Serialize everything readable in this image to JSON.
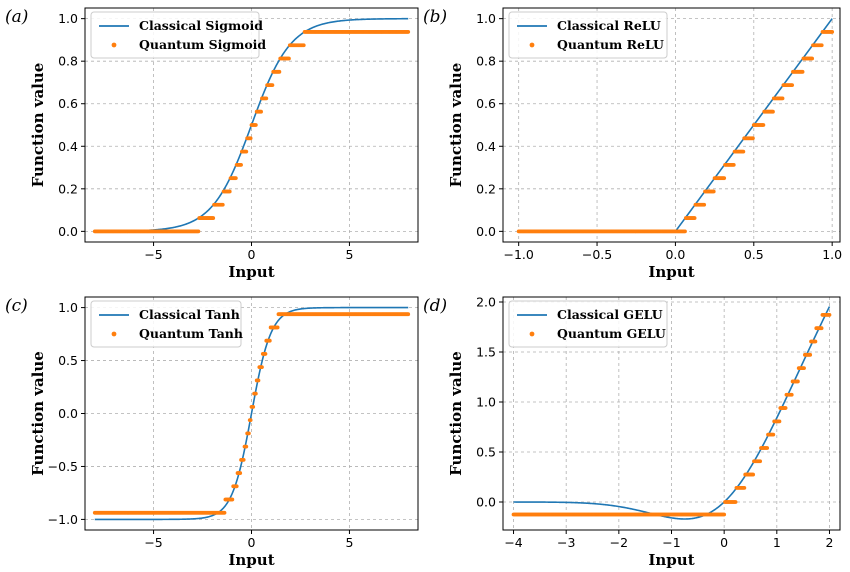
{
  "colors": {
    "classical": "#1f77b4",
    "quantum": "#ff7f0e",
    "grid": "#b0b0b0"
  },
  "chart_data": [
    {
      "type": "line",
      "panel_label": "(a)",
      "xlabel": "Input",
      "ylabel": "Function value",
      "xlim": [
        -8.5,
        8.5
      ],
      "ylim": [
        -0.05,
        1.05
      ],
      "xticks": [
        -5,
        0,
        5
      ],
      "xtick_labels": [
        "−5",
        "0",
        "5"
      ],
      "yticks": [
        0.0,
        0.2,
        0.4,
        0.6,
        0.8,
        1.0
      ],
      "ytick_labels": [
        "0.0",
        "0.2",
        "0.4",
        "0.6",
        "0.8",
        "1.0"
      ],
      "grid": true,
      "legend_position": "upper-left",
      "series": [
        {
          "name": "Classical Sigmoid",
          "style": "line",
          "function": "sigmoid",
          "x_range": [
            -8,
            8
          ]
        },
        {
          "name": "Quantum Sigmoid",
          "style": "dots",
          "function": "quantized_sigmoid",
          "x_range": [
            -8,
            8
          ],
          "levels": 16,
          "level_values": [
            0,
            0.0625,
            0.125,
            0.1875,
            0.25,
            0.3125,
            0.375,
            0.4375,
            0.5,
            0.5625,
            0.625,
            0.6875,
            0.75,
            0.8125,
            0.875,
            0.9375
          ]
        }
      ]
    },
    {
      "type": "line",
      "panel_label": "(b)",
      "xlabel": "Input",
      "ylabel": "Function value",
      "xlim": [
        -1.1,
        1.05
      ],
      "ylim": [
        -0.05,
        1.05
      ],
      "xticks": [
        -1.0,
        -0.5,
        0.0,
        0.5,
        1.0
      ],
      "xtick_labels": [
        "−1.0",
        "−0.5",
        "0.0",
        "0.5",
        "1.0"
      ],
      "yticks": [
        0.0,
        0.2,
        0.4,
        0.6,
        0.8,
        1.0
      ],
      "ytick_labels": [
        "0.0",
        "0.2",
        "0.4",
        "0.6",
        "0.8",
        "1.0"
      ],
      "grid": true,
      "legend_position": "upper-left",
      "series": [
        {
          "name": "Classical ReLU",
          "style": "line",
          "function": "relu",
          "x_range": [
            -1,
            1
          ]
        },
        {
          "name": "Quantum ReLU",
          "style": "dots",
          "function": "quantized_relu",
          "x_range": [
            -1,
            1
          ],
          "levels": 16,
          "level_values": [
            0,
            0.0625,
            0.125,
            0.1875,
            0.25,
            0.3125,
            0.375,
            0.4375,
            0.5,
            0.5625,
            0.625,
            0.6875,
            0.75,
            0.8125,
            0.875,
            0.9375
          ]
        }
      ]
    },
    {
      "type": "line",
      "panel_label": "(c)",
      "xlabel": "Input",
      "ylabel": "Function value",
      "xlim": [
        -8.5,
        8.5
      ],
      "ylim": [
        -1.1,
        1.1
      ],
      "xticks": [
        -5,
        0,
        5
      ],
      "xtick_labels": [
        "−5",
        "0",
        "5"
      ],
      "yticks": [
        -1.0,
        -0.5,
        0.0,
        0.5,
        1.0
      ],
      "ytick_labels": [
        "−1.0",
        "−0.5",
        "0.0",
        "0.5",
        "1.0"
      ],
      "grid": true,
      "legend_position": "upper-left",
      "series": [
        {
          "name": "Classical Tanh",
          "style": "line",
          "function": "tanh",
          "x_range": [
            -8,
            8
          ]
        },
        {
          "name": "Quantum Tanh",
          "style": "dots",
          "function": "quantized_tanh",
          "x_range": [
            -8,
            8
          ],
          "levels": 16,
          "range": [
            -0.9375,
            0.9375
          ]
        }
      ]
    },
    {
      "type": "line",
      "panel_label": "(d)",
      "xlabel": "Input",
      "ylabel": "Function value",
      "xlim": [
        -4.2,
        2.2
      ],
      "ylim": [
        -0.28,
        2.05
      ],
      "xticks": [
        -4,
        -3,
        -2,
        -1,
        0,
        1,
        2
      ],
      "xtick_labels": [
        "−4",
        "−3",
        "−2",
        "−1",
        "0",
        "1",
        "2"
      ],
      "yticks": [
        0.0,
        0.5,
        1.0,
        1.5,
        2.0
      ],
      "ytick_labels": [
        "0.0",
        "0.5",
        "1.0",
        "1.5",
        "2.0"
      ],
      "grid": true,
      "legend_position": "upper-left",
      "series": [
        {
          "name": "Classical GELU",
          "style": "line",
          "function": "gelu",
          "x_range": [
            -4,
            2
          ]
        },
        {
          "name": "Quantum GELU",
          "style": "dots",
          "function": "quantized_gelu",
          "x_range": [
            -4,
            2
          ],
          "levels": 16,
          "range": [
            -0.125,
            1.9375
          ]
        }
      ]
    }
  ]
}
